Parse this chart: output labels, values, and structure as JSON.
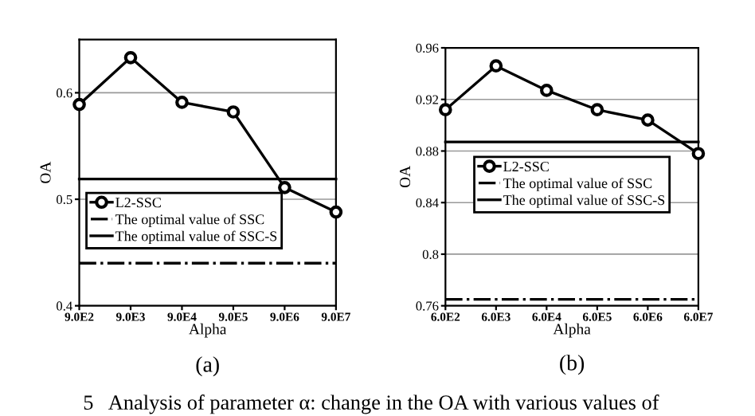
{
  "chart_data": [
    {
      "type": "line",
      "xlabel": "Alpha",
      "ylabel": "OA",
      "categories": [
        "9.0E2",
        "9.0E3",
        "9.0E4",
        "9.0E5",
        "9.0E6",
        "9.0E7"
      ],
      "series": [
        {
          "name": "L2-SSC",
          "color": "#000000",
          "marker": "circle",
          "line_style": "solid",
          "values": [
            0.589,
            0.633,
            0.591,
            0.582,
            0.511,
            0.488
          ]
        },
        {
          "name": "The optimal value of SSC",
          "color": "#000000",
          "marker": "none",
          "line_style": "dashdot",
          "values": [
            0.44,
            0.44,
            0.44,
            0.44,
            0.44,
            0.44
          ]
        },
        {
          "name": "The optimal value of SSC-S",
          "color": "#000000",
          "marker": "none",
          "line_style": "solid",
          "values": [
            0.519,
            0.519,
            0.519,
            0.519,
            0.519,
            0.519
          ]
        }
      ],
      "ylim": [
        0.4,
        0.65
      ],
      "yticks": [
        0.4,
        0.5,
        0.6
      ],
      "grid": "y",
      "legend": "center left",
      "annotations": [
        "(a)"
      ]
    },
    {
      "type": "line",
      "xlabel": "Alpha",
      "ylabel": "OA",
      "categories": [
        "6.0E2",
        "6.0E3",
        "6.0E4",
        "6.0E5",
        "6.0E6",
        "6.0E7"
      ],
      "series": [
        {
          "name": "L2-SSC",
          "color": "#000000",
          "marker": "circle",
          "line_style": "solid",
          "values": [
            0.912,
            0.946,
            0.927,
            0.912,
            0.904,
            0.878
          ]
        },
        {
          "name": "The optimal value of SSC",
          "color": "#000000",
          "marker": "none",
          "line_style": "dashdot",
          "values": [
            0.765,
            0.765,
            0.765,
            0.765,
            0.765,
            0.765
          ]
        },
        {
          "name": "The optimal value of SSC-S",
          "color": "#000000",
          "marker": "none",
          "line_style": "solid",
          "values": [
            0.887,
            0.887,
            0.887,
            0.887,
            0.887,
            0.887
          ]
        }
      ],
      "ylim": [
        0.76,
        0.96
      ],
      "yticks": [
        0.76,
        0.8,
        0.84,
        0.88,
        0.92,
        0.96
      ],
      "grid": "y",
      "legend": "center",
      "annotations": [
        "(b)",
        "5   Analysis of parameter α: change in the OA with various values of"
      ]
    }
  ]
}
